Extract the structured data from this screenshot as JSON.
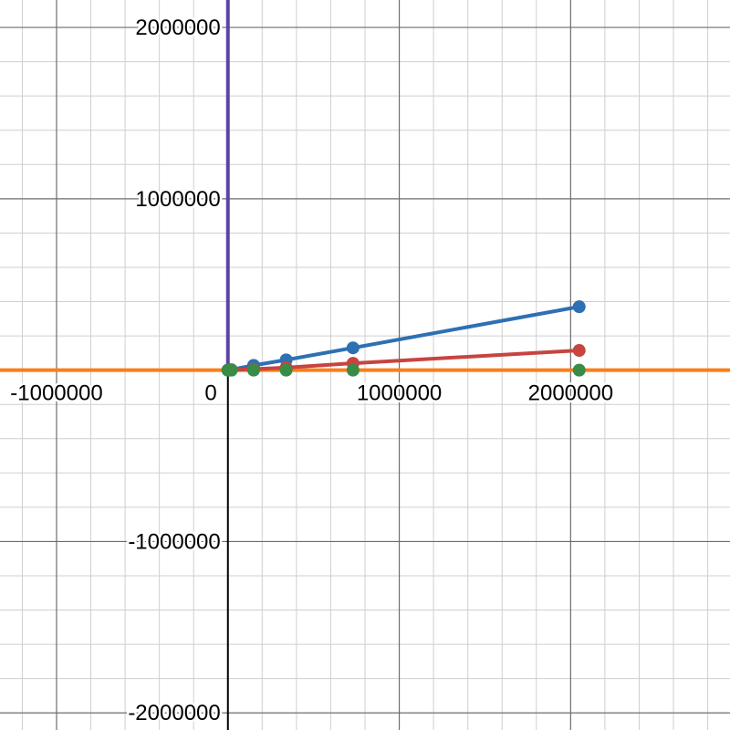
{
  "chart_data": {
    "type": "line",
    "title": "",
    "xlabel": "",
    "ylabel": "",
    "xlim": [
      -1330000,
      2930000
    ],
    "ylim": [
      -2100000,
      2160000
    ],
    "grid": true,
    "axis_tick_step": 1000000,
    "minor_grid_step": 200000,
    "x_tick_labels": [
      {
        "value": -1000000,
        "label": "-1000000"
      },
      {
        "value": 0,
        "label": "0"
      },
      {
        "value": 1000000,
        "label": "1000000"
      },
      {
        "value": 2000000,
        "label": "2000000"
      }
    ],
    "y_tick_labels": [
      {
        "value": 2000000,
        "label": "2000000"
      },
      {
        "value": 1000000,
        "label": "1000000"
      },
      {
        "value": -1000000,
        "label": "-1000000"
      },
      {
        "value": -2000000,
        "label": "-2000000"
      }
    ],
    "series": [
      {
        "color": "#2d70b3",
        "points": [
          [
            0,
            0
          ],
          [
            10000,
            1500
          ],
          [
            20000,
            3000
          ],
          [
            150000,
            28000
          ],
          [
            340000,
            60000
          ],
          [
            730000,
            130000
          ],
          [
            2050000,
            370000
          ]
        ],
        "line": true,
        "markers": true
      },
      {
        "color": "#c74440",
        "points": [
          [
            0,
            0
          ],
          [
            10000,
            400
          ],
          [
            20000,
            800
          ],
          [
            150000,
            6000
          ],
          [
            340000,
            15000
          ],
          [
            730000,
            40000
          ],
          [
            2050000,
            115000
          ]
        ],
        "line": true,
        "markers": true
      },
      {
        "color": "#388c46",
        "points": [
          [
            0,
            0
          ],
          [
            10000,
            0
          ],
          [
            20000,
            0
          ],
          [
            150000,
            0
          ],
          [
            340000,
            0
          ],
          [
            730000,
            0
          ],
          [
            2050000,
            0
          ]
        ],
        "line": false,
        "markers": true
      }
    ],
    "reference_lines": [
      {
        "color": "#fa7e19",
        "orientation": "horizontal",
        "value": 0
      },
      {
        "color": "#6042a6",
        "orientation": "vertical",
        "value": 0,
        "from": 0
      }
    ]
  }
}
